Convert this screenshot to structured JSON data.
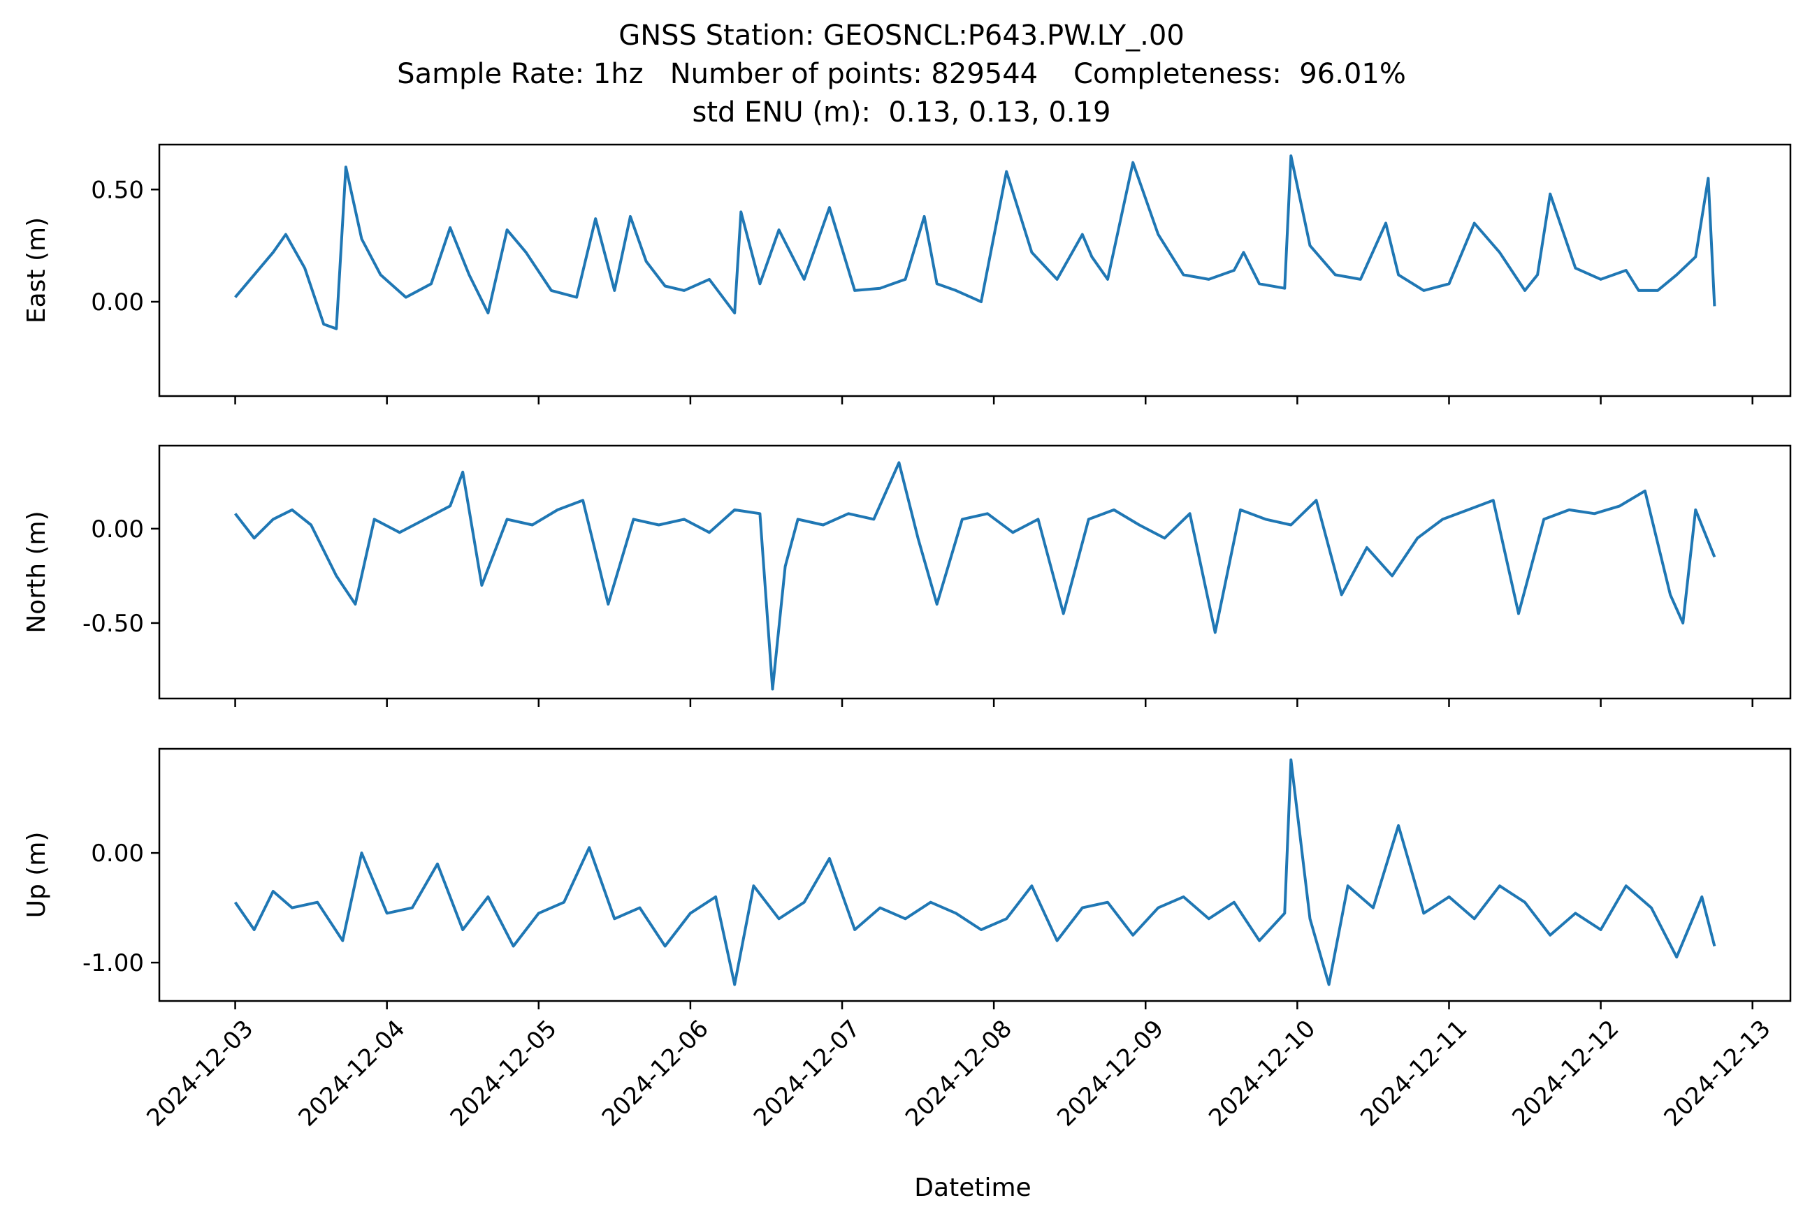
{
  "figure": {
    "title_line1": "GNSS Station: GEOSNCL:P643.PW.LY_.00",
    "title_line2": "Sample Rate: 1hz   Number of points: 829544    Completeness:  96.01%",
    "title_line3": "std ENU (m):  0.13, 0.13, 0.19",
    "xlabel": "Datetime",
    "line_color": "#1f77b4"
  },
  "chart_data": [
    {
      "type": "line",
      "name": "east",
      "ylabel": "East (m)",
      "xlim": [
        "2024-12-02T12:00",
        "2024-12-13T06:00"
      ],
      "ylim": [
        -0.42,
        0.7
      ],
      "yticks": [
        0.0,
        0.5
      ],
      "ytick_labels": [
        "0.00",
        "0.50"
      ],
      "xticks": [
        "2024-12-03",
        "2024-12-04",
        "2024-12-05",
        "2024-12-06",
        "2024-12-07",
        "2024-12-08",
        "2024-12-09",
        "2024-12-10",
        "2024-12-11",
        "2024-12-12",
        "2024-12-13"
      ],
      "series": [
        {
          "x": [
            "2024-12-03T00:00",
            "2024-12-03T03:00",
            "2024-12-03T06:00",
            "2024-12-03T08:00",
            "2024-12-03T11:00",
            "2024-12-03T14:00",
            "2024-12-03T16:00",
            "2024-12-03T17:30",
            "2024-12-03T20:00",
            "2024-12-03T23:00",
            "2024-12-04T03:00",
            "2024-12-04T07:00",
            "2024-12-04T10:00",
            "2024-12-04T13:00",
            "2024-12-04T16:00",
            "2024-12-04T19:00",
            "2024-12-04T22:00",
            "2024-12-05T02:00",
            "2024-12-05T06:00",
            "2024-12-05T09:00",
            "2024-12-05T12:00",
            "2024-12-05T14:30",
            "2024-12-05T17:00",
            "2024-12-05T20:00",
            "2024-12-05T23:00",
            "2024-12-06T03:00",
            "2024-12-06T07:00",
            "2024-12-06T08:00",
            "2024-12-06T11:00",
            "2024-12-06T14:00",
            "2024-12-06T18:00",
            "2024-12-06T22:00",
            "2024-12-07T02:00",
            "2024-12-07T06:00",
            "2024-12-07T10:00",
            "2024-12-07T13:00",
            "2024-12-07T15:00",
            "2024-12-07T18:00",
            "2024-12-07T22:00",
            "2024-12-08T02:00",
            "2024-12-08T06:00",
            "2024-12-08T10:00",
            "2024-12-08T14:00",
            "2024-12-08T15:30",
            "2024-12-08T18:00",
            "2024-12-08T22:00",
            "2024-12-09T02:00",
            "2024-12-09T06:00",
            "2024-12-09T10:00",
            "2024-12-09T14:00",
            "2024-12-09T15:30",
            "2024-12-09T18:00",
            "2024-12-09T22:00",
            "2024-12-09T23:00",
            "2024-12-10T02:00",
            "2024-12-10T06:00",
            "2024-12-10T10:00",
            "2024-12-10T14:00",
            "2024-12-10T16:00",
            "2024-12-10T20:00",
            "2024-12-11T00:00",
            "2024-12-11T04:00",
            "2024-12-11T08:00",
            "2024-12-11T12:00",
            "2024-12-11T14:00",
            "2024-12-11T16:00",
            "2024-12-11T20:00",
            "2024-12-12T00:00",
            "2024-12-12T04:00",
            "2024-12-12T06:00",
            "2024-12-12T09:00",
            "2024-12-12T12:00",
            "2024-12-12T15:00",
            "2024-12-12T17:00",
            "2024-12-12T18:00"
          ],
          "values": [
            0.02,
            0.12,
            0.22,
            0.3,
            0.15,
            -0.1,
            -0.12,
            0.6,
            0.28,
            0.12,
            0.02,
            0.08,
            0.33,
            0.12,
            -0.05,
            0.32,
            0.22,
            0.05,
            0.02,
            0.37,
            0.05,
            0.38,
            0.18,
            0.07,
            0.05,
            0.1,
            -0.05,
            0.4,
            0.08,
            0.32,
            0.1,
            0.42,
            0.05,
            0.06,
            0.1,
            0.38,
            0.08,
            0.05,
            0.0,
            0.58,
            0.22,
            0.1,
            0.3,
            0.2,
            0.1,
            0.62,
            0.3,
            0.12,
            0.1,
            0.14,
            0.22,
            0.08,
            0.06,
            0.65,
            0.25,
            0.12,
            0.1,
            0.35,
            0.12,
            0.05,
            0.08,
            0.35,
            0.22,
            0.05,
            0.12,
            0.48,
            0.15,
            0.1,
            0.14,
            0.05,
            0.05,
            0.12,
            0.2,
            0.55,
            -0.02
          ]
        }
      ]
    },
    {
      "type": "line",
      "name": "north",
      "ylabel": "North (m)",
      "xlim": [
        "2024-12-02T12:00",
        "2024-12-13T06:00"
      ],
      "ylim": [
        -0.9,
        0.44
      ],
      "yticks": [
        0.0,
        -0.5
      ],
      "ytick_labels": [
        "0.00",
        "-0.50"
      ],
      "xticks": [
        "2024-12-03",
        "2024-12-04",
        "2024-12-05",
        "2024-12-06",
        "2024-12-07",
        "2024-12-08",
        "2024-12-09",
        "2024-12-10",
        "2024-12-11",
        "2024-12-12",
        "2024-12-13"
      ],
      "series": [
        {
          "x": [
            "2024-12-03T00:00",
            "2024-12-03T03:00",
            "2024-12-03T06:00",
            "2024-12-03T09:00",
            "2024-12-03T12:00",
            "2024-12-03T16:00",
            "2024-12-03T19:00",
            "2024-12-03T22:00",
            "2024-12-04T02:00",
            "2024-12-04T06:00",
            "2024-12-04T10:00",
            "2024-12-04T12:00",
            "2024-12-04T15:00",
            "2024-12-04T19:00",
            "2024-12-04T23:00",
            "2024-12-05T03:00",
            "2024-12-05T07:00",
            "2024-12-05T11:00",
            "2024-12-05T15:00",
            "2024-12-05T19:00",
            "2024-12-05T23:00",
            "2024-12-06T03:00",
            "2024-12-06T07:00",
            "2024-12-06T11:00",
            "2024-12-06T13:00",
            "2024-12-06T15:00",
            "2024-12-06T17:00",
            "2024-12-06T21:00",
            "2024-12-07T01:00",
            "2024-12-07T05:00",
            "2024-12-07T09:00",
            "2024-12-07T12:00",
            "2024-12-07T15:00",
            "2024-12-07T19:00",
            "2024-12-07T23:00",
            "2024-12-08T03:00",
            "2024-12-08T07:00",
            "2024-12-08T11:00",
            "2024-12-08T15:00",
            "2024-12-08T19:00",
            "2024-12-08T23:00",
            "2024-12-09T03:00",
            "2024-12-09T07:00",
            "2024-12-09T11:00",
            "2024-12-09T15:00",
            "2024-12-09T19:00",
            "2024-12-09T23:00",
            "2024-12-10T03:00",
            "2024-12-10T07:00",
            "2024-12-10T11:00",
            "2024-12-10T15:00",
            "2024-12-10T19:00",
            "2024-12-10T23:00",
            "2024-12-11T03:00",
            "2024-12-11T07:00",
            "2024-12-11T11:00",
            "2024-12-11T15:00",
            "2024-12-11T19:00",
            "2024-12-11T23:00",
            "2024-12-12T03:00",
            "2024-12-12T07:00",
            "2024-12-12T11:00",
            "2024-12-12T13:00",
            "2024-12-12T15:00",
            "2024-12-12T18:00"
          ],
          "values": [
            0.08,
            -0.05,
            0.05,
            0.1,
            0.02,
            -0.25,
            -0.4,
            0.05,
            -0.02,
            0.05,
            0.12,
            0.3,
            -0.3,
            0.05,
            0.02,
            0.1,
            0.15,
            -0.4,
            0.05,
            0.02,
            0.05,
            -0.02,
            0.1,
            0.08,
            -0.85,
            -0.2,
            0.05,
            0.02,
            0.08,
            0.05,
            0.35,
            -0.05,
            -0.4,
            0.05,
            0.08,
            -0.02,
            0.05,
            -0.45,
            0.05,
            0.1,
            0.02,
            -0.05,
            0.08,
            -0.55,
            0.1,
            0.05,
            0.02,
            0.15,
            -0.35,
            -0.1,
            -0.25,
            -0.05,
            0.05,
            0.1,
            0.15,
            -0.45,
            0.05,
            0.1,
            0.08,
            0.12,
            0.2,
            -0.35,
            -0.5,
            0.1,
            -0.15
          ]
        }
      ]
    },
    {
      "type": "line",
      "name": "up",
      "ylabel": "Up (m)",
      "xlim": [
        "2024-12-02T12:00",
        "2024-12-13T06:00"
      ],
      "ylim": [
        -1.35,
        0.95
      ],
      "yticks": [
        0.0,
        -1.0
      ],
      "ytick_labels": [
        "0.00",
        "-1.00"
      ],
      "xticks": [
        "2024-12-03",
        "2024-12-04",
        "2024-12-05",
        "2024-12-06",
        "2024-12-07",
        "2024-12-08",
        "2024-12-09",
        "2024-12-10",
        "2024-12-11",
        "2024-12-12",
        "2024-12-13"
      ],
      "xtick_labels": [
        "2024-12-03",
        "2024-12-04",
        "2024-12-05",
        "2024-12-06",
        "2024-12-07",
        "2024-12-08",
        "2024-12-09",
        "2024-12-10",
        "2024-12-11",
        "2024-12-12",
        "2024-12-13"
      ],
      "series": [
        {
          "x": [
            "2024-12-03T00:00",
            "2024-12-03T03:00",
            "2024-12-03T06:00",
            "2024-12-03T09:00",
            "2024-12-03T13:00",
            "2024-12-03T17:00",
            "2024-12-03T20:00",
            "2024-12-04T00:00",
            "2024-12-04T04:00",
            "2024-12-04T08:00",
            "2024-12-04T12:00",
            "2024-12-04T16:00",
            "2024-12-04T20:00",
            "2024-12-05T00:00",
            "2024-12-05T04:00",
            "2024-12-05T08:00",
            "2024-12-05T12:00",
            "2024-12-05T16:00",
            "2024-12-05T20:00",
            "2024-12-06T00:00",
            "2024-12-06T04:00",
            "2024-12-06T07:00",
            "2024-12-06T10:00",
            "2024-12-06T14:00",
            "2024-12-06T18:00",
            "2024-12-06T22:00",
            "2024-12-07T02:00",
            "2024-12-07T06:00",
            "2024-12-07T10:00",
            "2024-12-07T14:00",
            "2024-12-07T18:00",
            "2024-12-07T22:00",
            "2024-12-08T02:00",
            "2024-12-08T06:00",
            "2024-12-08T10:00",
            "2024-12-08T14:00",
            "2024-12-08T18:00",
            "2024-12-08T22:00",
            "2024-12-09T02:00",
            "2024-12-09T06:00",
            "2024-12-09T10:00",
            "2024-12-09T14:00",
            "2024-12-09T18:00",
            "2024-12-09T22:00",
            "2024-12-09T23:00",
            "2024-12-10T02:00",
            "2024-12-10T05:00",
            "2024-12-10T08:00",
            "2024-12-10T12:00",
            "2024-12-10T16:00",
            "2024-12-10T20:00",
            "2024-12-11T00:00",
            "2024-12-11T04:00",
            "2024-12-11T08:00",
            "2024-12-11T12:00",
            "2024-12-11T16:00",
            "2024-12-11T20:00",
            "2024-12-12T00:00",
            "2024-12-12T04:00",
            "2024-12-12T08:00",
            "2024-12-12T12:00",
            "2024-12-12T16:00",
            "2024-12-12T18:00"
          ],
          "values": [
            -0.45,
            -0.7,
            -0.35,
            -0.5,
            -0.45,
            -0.8,
            0.0,
            -0.55,
            -0.5,
            -0.1,
            -0.7,
            -0.4,
            -0.85,
            -0.55,
            -0.45,
            0.05,
            -0.6,
            -0.5,
            -0.85,
            -0.55,
            -0.4,
            -1.2,
            -0.3,
            -0.6,
            -0.45,
            -0.05,
            -0.7,
            -0.5,
            -0.6,
            -0.45,
            -0.55,
            -0.7,
            -0.6,
            -0.3,
            -0.8,
            -0.5,
            -0.45,
            -0.75,
            -0.5,
            -0.4,
            -0.6,
            -0.45,
            -0.8,
            -0.55,
            0.85,
            -0.6,
            -1.2,
            -0.3,
            -0.5,
            0.25,
            -0.55,
            -0.4,
            -0.6,
            -0.3,
            -0.45,
            -0.75,
            -0.55,
            -0.7,
            -0.3,
            -0.5,
            -0.95,
            -0.4,
            -0.85
          ]
        }
      ]
    }
  ]
}
